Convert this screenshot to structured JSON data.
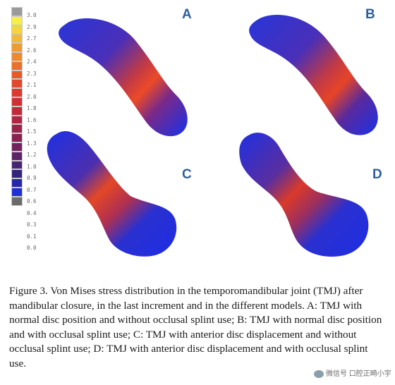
{
  "colorbar": {
    "labels": [
      "3.0",
      "2.9",
      "2.7",
      "2.6",
      "2.4",
      "2.3",
      "2.1",
      "2.0",
      "1.8",
      "1.6",
      "1.5",
      "1.3",
      "1.2",
      "1.0",
      "0.9",
      "0.7",
      "0.6",
      "0.4",
      "0.3",
      "0.1",
      "0.0"
    ],
    "colors": [
      "#9a9a9a",
      "#f6ee4a",
      "#f4d53e",
      "#f1ba36",
      "#ee9b31",
      "#ec8a2e",
      "#e9712c",
      "#e65a2b",
      "#e2482c",
      "#db3a2e",
      "#d02f33",
      "#c12a3a",
      "#b02541",
      "#9c2249",
      "#872252",
      "#72225c",
      "#5d2367",
      "#482473",
      "#33247e",
      "#2628a6",
      "#1f2ed8",
      "#6b6b6b"
    ]
  },
  "panels": [
    {
      "letter": "A",
      "shape": "banana",
      "hot": "#ec4a27"
    },
    {
      "letter": "B",
      "shape": "banana",
      "hot": "#e64427"
    },
    {
      "letter": "C",
      "shape": "club",
      "hot": "#e34726"
    },
    {
      "letter": "D",
      "shape": "club",
      "hot": "#d93a2a"
    }
  ],
  "caption": "Figure 3. Von Mises stress distribution in the temporomandibular joint (TMJ) after mandibular closure, in the last increment and in the different models. A: TMJ with normal disc position and without occlusal splint use; B: TMJ with normal disc position and with occlusal splint use; C: TMJ with anterior disc displacement and without occlusal splint use; D: TMJ with anterior disc displacement and with occlusal splint use.",
  "watermark": "微信号 口腔正畸小宇"
}
